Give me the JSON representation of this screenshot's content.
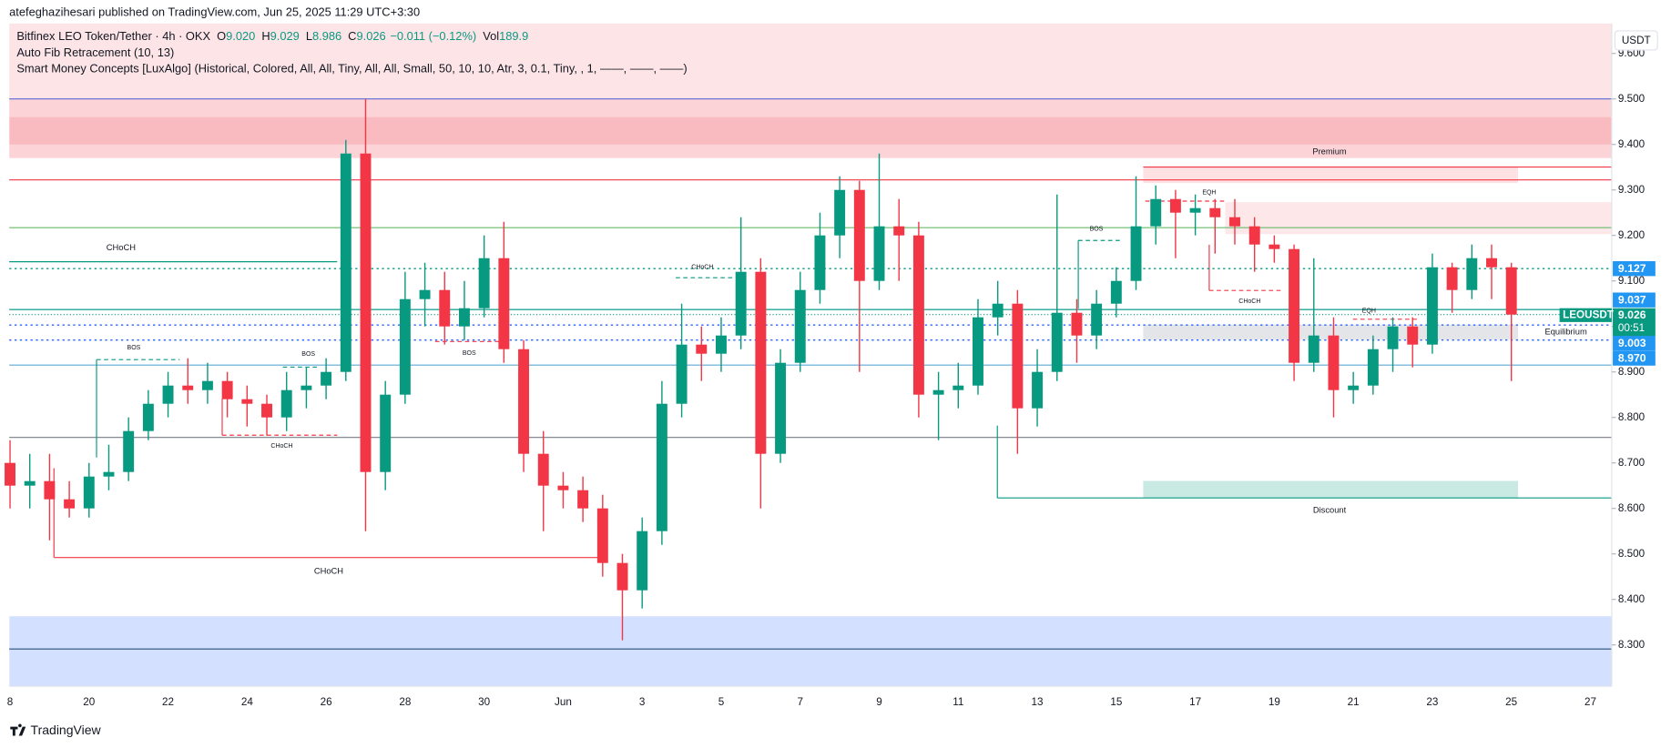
{
  "header": {
    "publisher": "atefeghazihesari published on TradingView.com, Jun 25, 2025 11:29 UTC+3:30"
  },
  "chart_data": {
    "type": "candlestick",
    "symbol_title": "Bitfinex LEO Token/Tether · 4h · OKX",
    "ohlc_legend": [
      {
        "label": "O",
        "value": "9.020"
      },
      {
        "label": "H",
        "value": "9.029"
      },
      {
        "label": "L",
        "value": "8.986"
      },
      {
        "label": "C",
        "value": "9.026"
      },
      {
        "value": "−0.011 (−0.12%)"
      },
      {
        "label": "Vol",
        "value": "189.9"
      }
    ],
    "indicators": [
      "Auto Fib Retracement (10, 13)",
      "Smart Money Concepts [LuxAlgo] (Historical, Colored, All, All, Tiny, All, All, Small, 50, 10, 10, Atr, 3, 0.1, Tiny, , 1, ——, ——, ——)"
    ],
    "currency": "USDT",
    "x": [
      0,
      0.5,
      1,
      1.5,
      2,
      2.5,
      3,
      3.5,
      4,
      4.5,
      5,
      5.5,
      6,
      6.5,
      7,
      7.5,
      8,
      8.5,
      9,
      9.5,
      10,
      10.5,
      11,
      11.5,
      12,
      12.5,
      13,
      13.5,
      14,
      14.5,
      15,
      15.5,
      16,
      16.5,
      17,
      17.5,
      18,
      18.5,
      19,
      19.5,
      20,
      20.5,
      21,
      21.5,
      22,
      22.5,
      23,
      23.5,
      24,
      24.5,
      25,
      25.5,
      26,
      26.5,
      27,
      27.5,
      28,
      28.5,
      29,
      29.5,
      30,
      30.5,
      31,
      31.5,
      32,
      32.5,
      33,
      33.5,
      34,
      34.5,
      35,
      35.5,
      36,
      36.5,
      37,
      37.5,
      38
    ],
    "open": [
      8.7,
      8.65,
      8.66,
      8.62,
      8.6,
      8.67,
      8.68,
      8.77,
      8.83,
      8.87,
      8.86,
      8.88,
      8.84,
      8.83,
      8.8,
      8.86,
      8.87,
      8.9,
      9.38,
      8.68,
      8.85,
      9.06,
      9.08,
      9.0,
      9.04,
      9.15,
      8.95,
      8.72,
      8.65,
      8.64,
      8.6,
      8.48,
      8.42,
      8.55,
      8.83,
      8.96,
      8.94,
      8.98,
      9.12,
      8.72,
      8.92,
      9.08,
      9.2,
      9.3,
      9.1,
      9.22,
      9.2,
      8.85,
      8.86,
      8.87,
      9.02,
      9.05,
      8.82,
      8.9,
      9.03,
      8.98,
      9.05,
      9.1,
      9.22,
      9.28,
      9.25,
      9.26,
      9.24,
      9.22,
      9.18,
      9.17,
      8.92,
      8.98,
      8.86,
      8.87,
      8.95,
      9.0,
      8.96,
      9.13,
      9.08,
      9.15,
      9.13
    ],
    "high": [
      8.75,
      8.72,
      8.72,
      8.66,
      8.7,
      8.74,
      8.8,
      8.86,
      8.9,
      8.93,
      8.92,
      8.9,
      8.87,
      8.85,
      8.9,
      8.91,
      8.93,
      9.41,
      9.5,
      8.88,
      9.12,
      9.14,
      9.12,
      9.1,
      9.2,
      9.23,
      8.97,
      8.77,
      8.68,
      8.67,
      8.63,
      8.5,
      8.58,
      8.88,
      9.05,
      9.0,
      9.02,
      9.24,
      9.15,
      8.95,
      9.12,
      9.25,
      9.33,
      9.32,
      9.38,
      9.28,
      9.23,
      8.9,
      8.92,
      9.06,
      9.1,
      9.08,
      8.95,
      9.29,
      9.06,
      9.08,
      9.13,
      9.33,
      9.31,
      9.3,
      9.29,
      9.28,
      9.28,
      9.24,
      9.2,
      9.18,
      9.15,
      9.02,
      8.9,
      8.98,
      9.02,
      9.02,
      9.16,
      9.14,
      9.18,
      9.18,
      9.14
    ],
    "low": [
      8.6,
      8.6,
      8.53,
      8.58,
      8.58,
      8.64,
      8.66,
      8.75,
      8.8,
      8.83,
      8.83,
      8.8,
      8.78,
      8.76,
      8.77,
      8.82,
      8.84,
      8.88,
      8.55,
      8.64,
      8.83,
      9.0,
      8.96,
      8.97,
      9.02,
      8.92,
      8.68,
      8.55,
      8.6,
      8.57,
      8.45,
      8.31,
      8.38,
      8.52,
      8.8,
      8.88,
      8.9,
      8.95,
      8.6,
      8.7,
      8.9,
      9.05,
      9.15,
      8.9,
      9.08,
      9.1,
      8.8,
      8.75,
      8.82,
      8.85,
      8.98,
      8.72,
      8.78,
      8.88,
      8.92,
      8.95,
      9.02,
      9.08,
      9.18,
      9.15,
      9.2,
      9.16,
      9.18,
      9.12,
      9.14,
      8.88,
      8.9,
      8.8,
      8.83,
      8.85,
      8.9,
      8.91,
      8.94,
      9.03,
      9.06,
      9.06,
      8.88
    ],
    "close": [
      8.65,
      8.66,
      8.62,
      8.6,
      8.67,
      8.68,
      8.77,
      8.83,
      8.87,
      8.86,
      8.88,
      8.84,
      8.83,
      8.8,
      8.86,
      8.87,
      8.9,
      9.38,
      8.68,
      8.85,
      9.06,
      9.08,
      9.0,
      9.04,
      9.15,
      8.95,
      8.72,
      8.65,
      8.64,
      8.6,
      8.48,
      8.42,
      8.55,
      8.83,
      8.96,
      8.94,
      8.98,
      9.12,
      8.72,
      8.92,
      9.08,
      9.2,
      9.3,
      9.1,
      9.22,
      9.2,
      8.85,
      8.86,
      8.87,
      9.02,
      9.05,
      8.82,
      8.9,
      9.03,
      8.98,
      9.05,
      9.1,
      9.22,
      9.28,
      9.25,
      9.26,
      9.24,
      9.22,
      9.18,
      9.17,
      8.92,
      8.98,
      8.86,
      8.87,
      8.95,
      9.0,
      8.96,
      9.13,
      9.08,
      9.15,
      9.13,
      9.026
    ],
    "up_color": "#089981",
    "down_color": "#f23645",
    "xlim": [
      -0.02,
      40.54
    ],
    "xticks": [
      {
        "value": 0,
        "label": "8"
      },
      {
        "value": 2,
        "label": "20"
      },
      {
        "value": 4,
        "label": "22"
      },
      {
        "value": 6,
        "label": "24"
      },
      {
        "value": 8,
        "label": "26"
      },
      {
        "value": 10,
        "label": "28"
      },
      {
        "value": 12,
        "label": "30"
      },
      {
        "value": 14,
        "label": "Jun"
      },
      {
        "value": 16,
        "label": "3"
      },
      {
        "value": 18,
        "label": "5"
      },
      {
        "value": 20,
        "label": "7"
      },
      {
        "value": 22,
        "label": "9"
      },
      {
        "value": 24,
        "label": "11"
      },
      {
        "value": 26,
        "label": "13"
      },
      {
        "value": 28,
        "label": "15"
      },
      {
        "value": 30,
        "label": "17"
      },
      {
        "value": 32,
        "label": "19"
      },
      {
        "value": 34,
        "label": "21"
      },
      {
        "value": 36,
        "label": "23"
      },
      {
        "value": 38,
        "label": "25"
      },
      {
        "value": 40,
        "label": "27"
      }
    ],
    "ylim": [
      8.209,
      9.666
    ],
    "yticks": [
      {
        "value": 8.3,
        "label": "8.300"
      },
      {
        "value": 8.4,
        "label": "8.400"
      },
      {
        "value": 8.5,
        "label": "8.500"
      },
      {
        "value": 8.6,
        "label": "8.600"
      },
      {
        "value": 8.7,
        "label": "8.700"
      },
      {
        "value": 8.8,
        "label": "8.800"
      },
      {
        "value": 8.9,
        "label": "8.900"
      },
      {
        "value": 9.0,
        "label": "9.000"
      },
      {
        "value": 9.1,
        "label": "9.100"
      },
      {
        "value": 9.2,
        "label": "9.200"
      },
      {
        "value": 9.3,
        "label": "9.300"
      },
      {
        "value": 9.4,
        "label": "9.400"
      },
      {
        "value": 9.5,
        "label": "9.500"
      },
      {
        "value": 9.6,
        "label": "9.600"
      }
    ],
    "fib_zones": [
      {
        "from": 9.5,
        "to": 9.666,
        "color": "#f23645",
        "opacity": 0.13
      },
      {
        "from": 9.37,
        "to": 9.5,
        "color": "#f23645",
        "opacity": 0.22
      },
      {
        "from": 9.4,
        "to": 9.46,
        "color": "#f23645",
        "opacity": 0.15
      },
      {
        "from": 8.209,
        "to": 8.363,
        "color": "#2962ff",
        "opacity": 0.2
      }
    ],
    "fib_levels": [
      {
        "value": 9.5,
        "color": "#5b6bd6"
      },
      {
        "value": 9.322,
        "color": "#f23645"
      },
      {
        "value": 9.217,
        "color": "#66bb6a"
      },
      {
        "value": 8.915,
        "color": "#5fa8d3"
      },
      {
        "value": 8.756,
        "color": "#787b86"
      },
      {
        "value": 8.291,
        "color": "#2a4f7a"
      }
    ],
    "price_lines": [
      {
        "value": 9.127,
        "label": "9.127",
        "color": "#2196f3",
        "line_color": "#089981",
        "dashed": true
      },
      {
        "value": 9.037,
        "label": "9.037",
        "color": "#2196f3",
        "line_color": "#26a69a",
        "dashed": false
      },
      {
        "value": 9.003,
        "label": "9.003",
        "color": "#2196f3",
        "line_color": "#2962ff",
        "dashed": true
      },
      {
        "value": 8.97,
        "label": "8.970",
        "color": "#2196f3",
        "line_color": "#2962ff",
        "dashed": true
      }
    ],
    "last_price": {
      "symbol": "LEOUSDT",
      "value": 9.026,
      "label": "9.026",
      "countdown": "00:51",
      "color": "#089981"
    },
    "smc_labels": [
      "Premium",
      "Equilibrium",
      "Discount",
      "CHoCH",
      "CHoCH",
      "BOS",
      "BOS",
      "CHoCH",
      "BOS",
      "CHoCH",
      "BOS",
      "EQH",
      "CHoCH",
      "EQH"
    ]
  },
  "footer": {
    "brand": "TradingView"
  }
}
